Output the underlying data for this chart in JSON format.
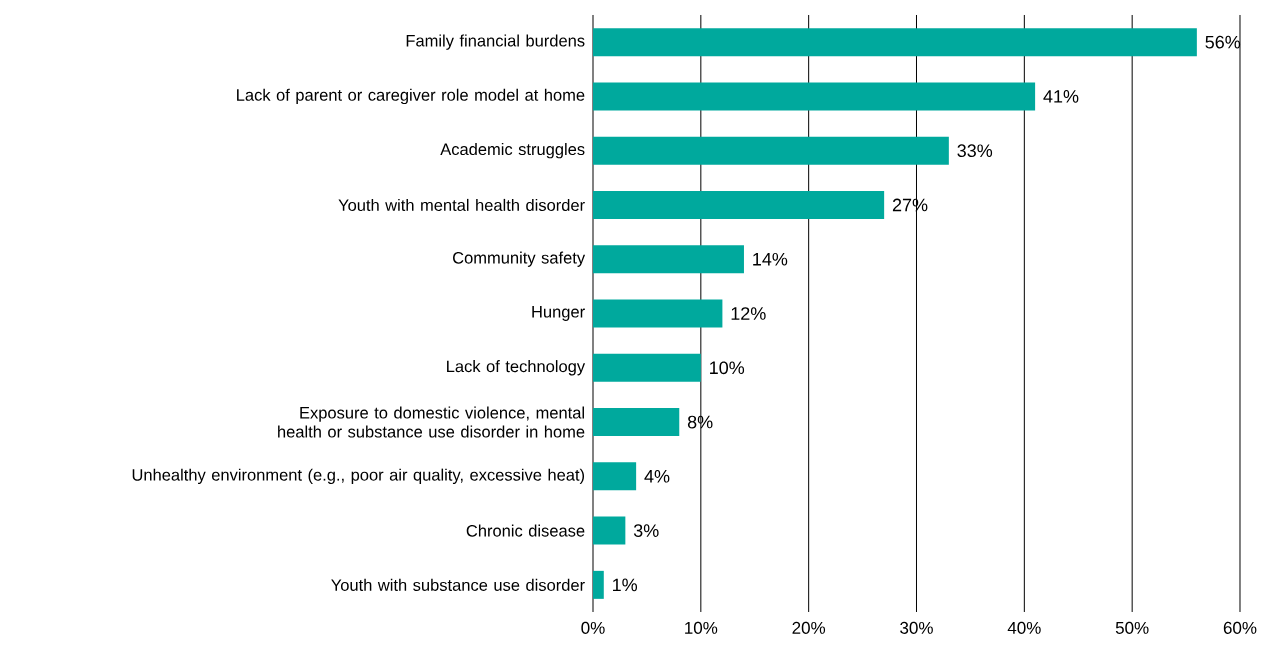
{
  "chart_data": {
    "type": "bar",
    "orientation": "horizontal",
    "categories": [
      "Family financial burdens",
      "Lack of parent or caregiver role model at home",
      "Academic struggles",
      "Youth with mental health disorder",
      "Community safety",
      "Hunger",
      "Lack of technology",
      "Exposure to domestic violence, mental health or substance use disorder in home",
      "Unhealthy environment (e.g., poor air quality, excessive heat)",
      "Chronic disease",
      "Youth with substance use disorder"
    ],
    "values": [
      56,
      41,
      33,
      27,
      14,
      12,
      10,
      8,
      4,
      3,
      1
    ],
    "value_labels": [
      "56%",
      "41%",
      "33%",
      "27%",
      "14%",
      "12%",
      "10%",
      "8%",
      "4%",
      "3%",
      "1%"
    ],
    "color": "#00a99d",
    "xlim": [
      0,
      60
    ],
    "xticks": [
      {
        "value": 0,
        "label": "0%"
      },
      {
        "value": 10,
        "label": "10%"
      },
      {
        "value": 20,
        "label": "20%"
      },
      {
        "value": 30,
        "label": "30%"
      },
      {
        "value": 40,
        "label": "40%"
      },
      {
        "value": 50,
        "label": "50%"
      },
      {
        "value": 60,
        "label": "60%"
      }
    ],
    "grid": "x"
  }
}
